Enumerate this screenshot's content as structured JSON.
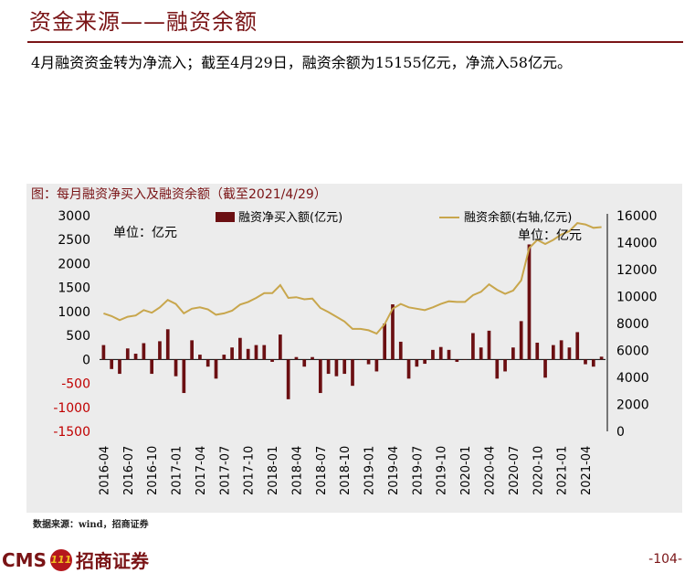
{
  "page": {
    "title": "资金来源——融资余额",
    "summary": "4月融资资金转为净流入；截至4月29日，融资余额为15155亿元，净流入58亿元。",
    "chart_caption": "图：每月融资净买入及融资余额（截至2021/4/29）",
    "source": "数据来源：wind，招商证券",
    "logo_text": "招商证券",
    "logo_prefix": "CMS",
    "logo_emblem": "111",
    "page_number": "-104-"
  },
  "chart_data": {
    "type": "bar+line",
    "title": "图：每月融资净买入及融资余额（截至2021/4/29）",
    "left_unit": "单位：亿元",
    "right_unit": "单位：亿元",
    "y_left": {
      "min": -1500,
      "max": 3000,
      "ticks": [
        3000,
        2500,
        2000,
        1500,
        1000,
        500,
        0,
        -500,
        -1000,
        -1500
      ]
    },
    "y_right": {
      "min": 0,
      "max": 16000,
      "ticks": [
        16000,
        14000,
        12000,
        10000,
        8000,
        6000,
        4000,
        2000,
        0
      ]
    },
    "x_tick_labels": [
      "2016-04",
      "2016-07",
      "2016-10",
      "2017-01",
      "2017-04",
      "2017-07",
      "2017-10",
      "2018-01",
      "2018-04",
      "2018-07",
      "2018-10",
      "2019-01",
      "2019-04",
      "2019-07",
      "2019-10",
      "2020-01",
      "2020-04",
      "2020-07",
      "2020-10",
      "2021-01",
      "2021-04"
    ],
    "bar_series": {
      "name": "融资净买入额(亿元)",
      "color": "#6b0f12",
      "values": [
        300,
        -200,
        -300,
        230,
        120,
        340,
        -300,
        380,
        630,
        -350,
        -700,
        400,
        100,
        -150,
        -400,
        100,
        250,
        450,
        220,
        300,
        300,
        -50,
        520,
        -830,
        50,
        -150,
        50,
        -700,
        -300,
        -350,
        -300,
        -550,
        0,
        -100,
        -250,
        750,
        1150,
        370,
        -400,
        -150,
        -90,
        200,
        260,
        200,
        -50,
        0,
        550,
        250,
        600,
        -400,
        -250,
        250,
        800,
        2400,
        350,
        -380,
        300,
        400,
        250,
        570,
        -100,
        -150,
        58
      ],
      "axis": "left"
    },
    "line_series": {
      "name": "融资余额(右轴,亿元)",
      "color": "#c8a64c",
      "values": [
        8750,
        8550,
        8250,
        8500,
        8600,
        9000,
        8800,
        9200,
        9750,
        9450,
        8750,
        9100,
        9200,
        9050,
        8650,
        8750,
        8950,
        9400,
        9600,
        9900,
        10250,
        10250,
        10850,
        9900,
        9950,
        9800,
        9850,
        9150,
        8850,
        8500,
        8150,
        7600,
        7600,
        7500,
        7250,
        7950,
        9100,
        9450,
        9200,
        9100,
        9000,
        9200,
        9450,
        9650,
        9600,
        9600,
        10100,
        10350,
        10900,
        10500,
        10200,
        10450,
        11200,
        13600,
        14200,
        13900,
        14200,
        14600,
        14850,
        15450,
        15350,
        15100,
        15155
      ],
      "axis": "right"
    },
    "legend_placement": "top",
    "grid": false
  }
}
